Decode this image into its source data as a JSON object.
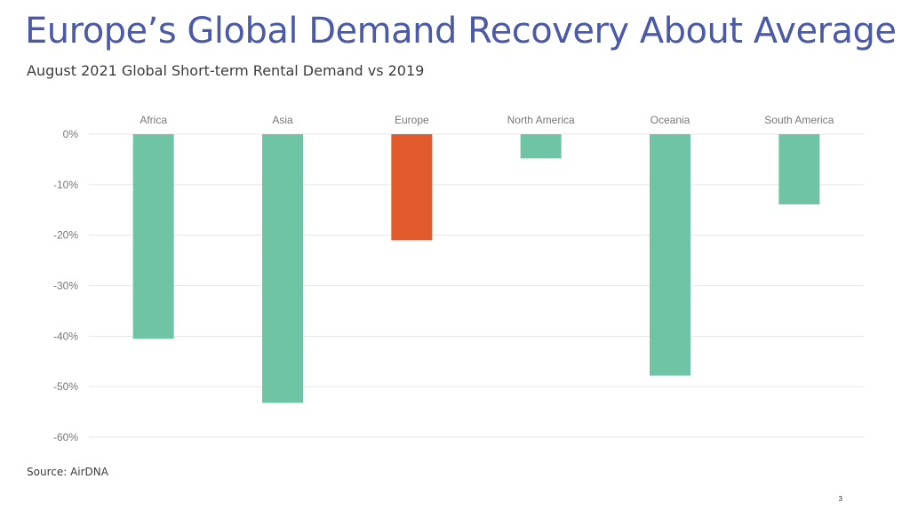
{
  "slide": {
    "title": "Europe’s Global Demand Recovery About Average",
    "subtitle": "August 2021 Global Short-term Rental Demand vs 2019",
    "source": "Source: AirDNA",
    "page_number": "3"
  },
  "colors": {
    "bar_default": "#6fc4a6",
    "bar_highlight": "#e05a2b",
    "title": "#4a5aa8",
    "gridline": "#e6e6e6",
    "tick_label": "#777777"
  },
  "chart_data": {
    "type": "bar",
    "categories": [
      "Africa",
      "Asia",
      "Europe",
      "North America",
      "Oceania",
      "South America"
    ],
    "values": [
      -40.5,
      -53.2,
      -21.0,
      -4.8,
      -47.8,
      -13.9
    ],
    "highlight": "Europe",
    "ylim": [
      -60,
      0
    ],
    "yticks": [
      0,
      -10,
      -20,
      -30,
      -40,
      -50,
      -60
    ],
    "ytick_labels": [
      "0%",
      "-10%",
      "-20%",
      "-30%",
      "-40%",
      "-50%",
      "-60%"
    ],
    "category_labels_position": "top",
    "grid": true,
    "legend": "none"
  }
}
